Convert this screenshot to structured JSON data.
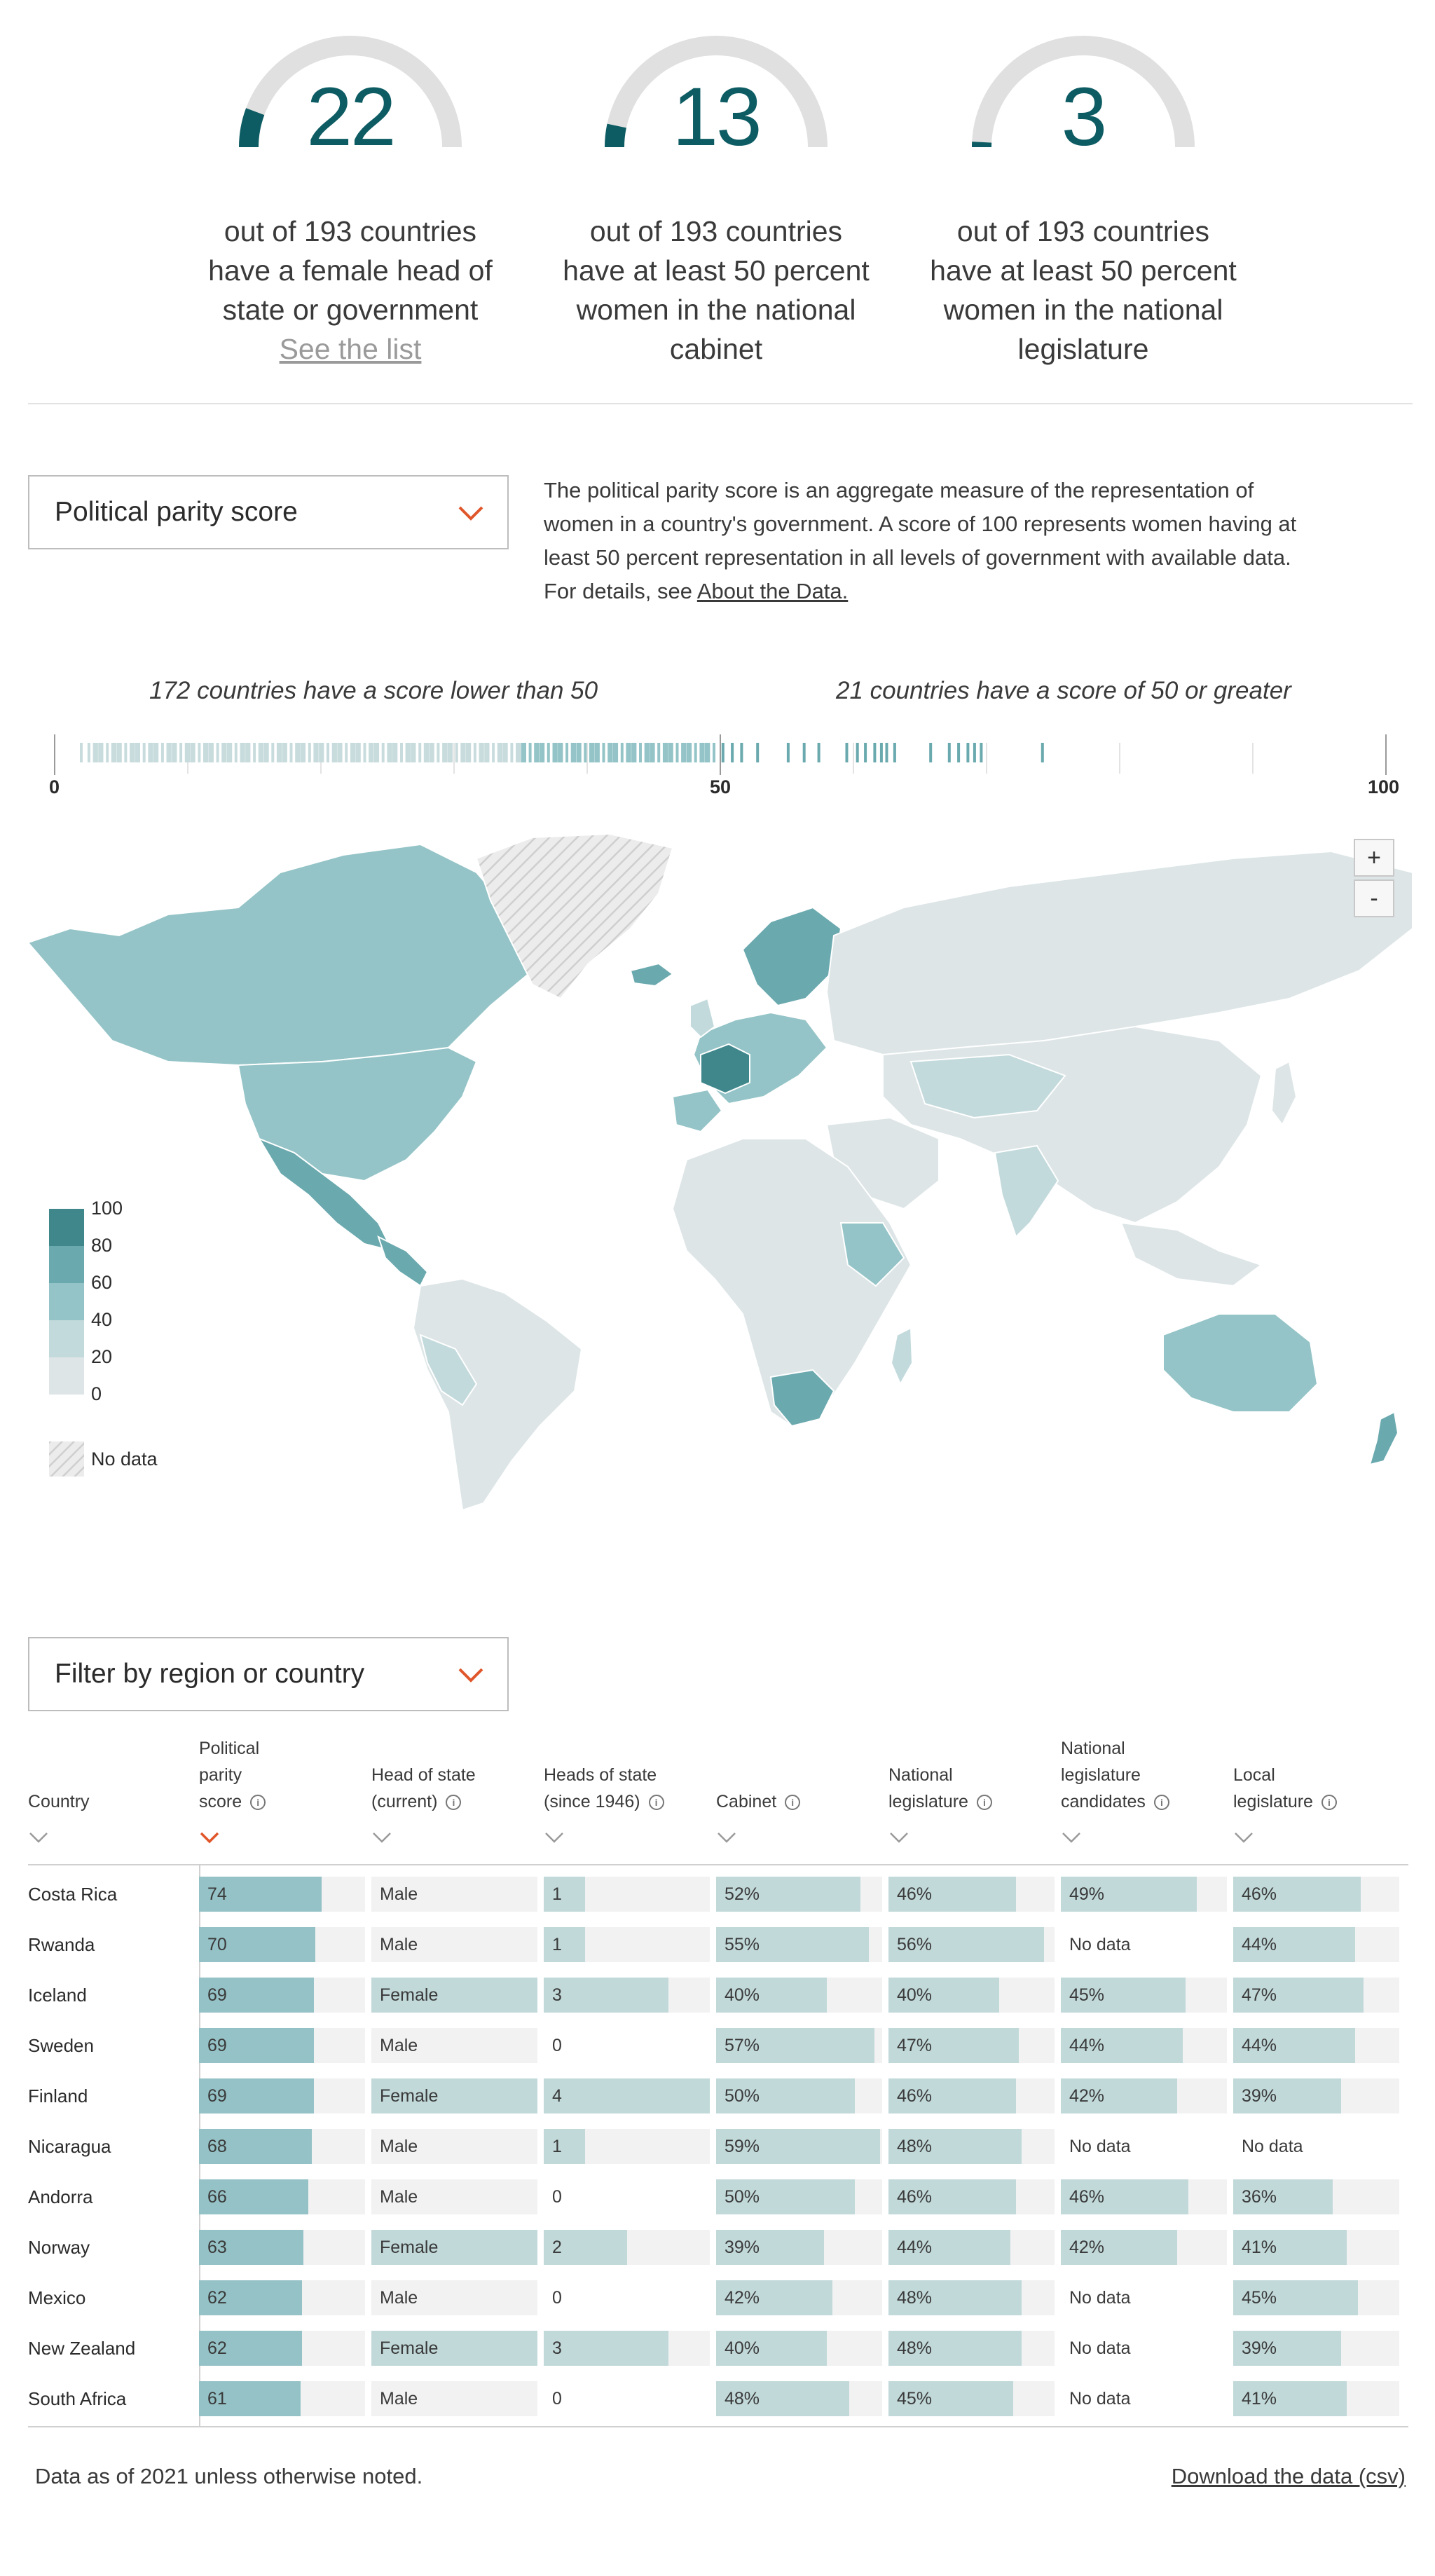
{
  "stats": [
    {
      "number": "22",
      "value": 22,
      "total": 193,
      "text": "out of 193 countries have a female head of state or government",
      "link": "See the list"
    },
    {
      "number": "13",
      "value": 13,
      "total": 193,
      "text": "out of 193 countries have at least 50 percent women in the national cabinet",
      "link": ""
    },
    {
      "number": "3",
      "value": 3,
      "total": 193,
      "text": "out of 193 countries have at least 50 percent women in the national legislature",
      "link": ""
    }
  ],
  "measure_dropdown": {
    "label": "Political parity score"
  },
  "description": {
    "text": "The political parity score is an aggregate measure of the representation of women in a country's government. A score of 100 represents women having at least 50 percent representation in all levels of government with available data. For details, see ",
    "link": "About the Data."
  },
  "strip": {
    "caption_low": "172 countries have a score lower than 50",
    "caption_high": "21 countries have a score of 50 or greater",
    "axis_min": "0",
    "axis_mid": "50",
    "axis_max": "100"
  },
  "map": {
    "zoom_in": "+",
    "zoom_out": "-",
    "legend": [
      "100",
      "80",
      "60",
      "40",
      "20",
      "0"
    ],
    "legend_colors": [
      "#3f878b",
      "#6aa9ae",
      "#94c4c7",
      "#c3dadc",
      "#dde5e7"
    ],
    "no_data": "No data"
  },
  "filter_dropdown": {
    "label": "Filter by region or country"
  },
  "table": {
    "columns": [
      {
        "label": "Country",
        "lines": [
          "Country"
        ],
        "info": false
      },
      {
        "label": "Political parity score",
        "lines": [
          "Political",
          "parity",
          "score"
        ],
        "info": true
      },
      {
        "label": "Head of state (current)",
        "lines": [
          "Head of state",
          "(current)"
        ],
        "info": true
      },
      {
        "label": "Heads of state (since 1946)",
        "lines": [
          "Heads of state",
          "(since 1946)"
        ],
        "info": true
      },
      {
        "label": "Cabinet",
        "lines": [
          "Cabinet"
        ],
        "info": true
      },
      {
        "label": "National legislature",
        "lines": [
          "National",
          "legislature"
        ],
        "info": true
      },
      {
        "label": "National legislature candidates",
        "lines": [
          "National",
          "legislature",
          "candidates"
        ],
        "info": true
      },
      {
        "label": "Local legislature",
        "lines": [
          "Local",
          "legislature"
        ],
        "info": true
      }
    ],
    "rows": [
      {
        "country": "Costa Rica",
        "score": "74",
        "head": "Male",
        "heads": "1",
        "cabinet": "52%",
        "natleg": "46%",
        "cand": "49%",
        "local": "46%"
      },
      {
        "country": "Rwanda",
        "score": "70",
        "head": "Male",
        "heads": "1",
        "cabinet": "55%",
        "natleg": "56%",
        "cand": "No data",
        "local": "44%"
      },
      {
        "country": "Iceland",
        "score": "69",
        "head": "Female",
        "heads": "3",
        "cabinet": "40%",
        "natleg": "40%",
        "cand": "45%",
        "local": "47%"
      },
      {
        "country": "Sweden",
        "score": "69",
        "head": "Male",
        "heads": "0",
        "cabinet": "57%",
        "natleg": "47%",
        "cand": "44%",
        "local": "44%"
      },
      {
        "country": "Finland",
        "score": "69",
        "head": "Female",
        "heads": "4",
        "cabinet": "50%",
        "natleg": "46%",
        "cand": "42%",
        "local": "39%"
      },
      {
        "country": "Nicaragua",
        "score": "68",
        "head": "Male",
        "heads": "1",
        "cabinet": "59%",
        "natleg": "48%",
        "cand": "No data",
        "local": "No data"
      },
      {
        "country": "Andorra",
        "score": "66",
        "head": "Male",
        "heads": "0",
        "cabinet": "50%",
        "natleg": "46%",
        "cand": "46%",
        "local": "36%"
      },
      {
        "country": "Norway",
        "score": "63",
        "head": "Female",
        "heads": "2",
        "cabinet": "39%",
        "natleg": "44%",
        "cand": "42%",
        "local": "41%"
      },
      {
        "country": "Mexico",
        "score": "62",
        "head": "Male",
        "heads": "0",
        "cabinet": "42%",
        "natleg": "48%",
        "cand": "No data",
        "local": "45%"
      },
      {
        "country": "New Zealand",
        "score": "62",
        "head": "Female",
        "heads": "3",
        "cabinet": "40%",
        "natleg": "48%",
        "cand": "No data",
        "local": "39%"
      },
      {
        "country": "South Africa",
        "score": "61",
        "head": "Male",
        "heads": "0",
        "cabinet": "48%",
        "natleg": "45%",
        "cand": "No data",
        "local": "41%"
      }
    ]
  },
  "footer": {
    "note": "Data as of 2021 unless otherwise noted.",
    "download": "Download the data (csv)"
  },
  "colors": {
    "accent": "#0d5c63",
    "chevron": "#e0562a",
    "bar": "#95c2c6",
    "bar_light": "#c2d9da",
    "cell_bg": "#f2f2f2"
  }
}
